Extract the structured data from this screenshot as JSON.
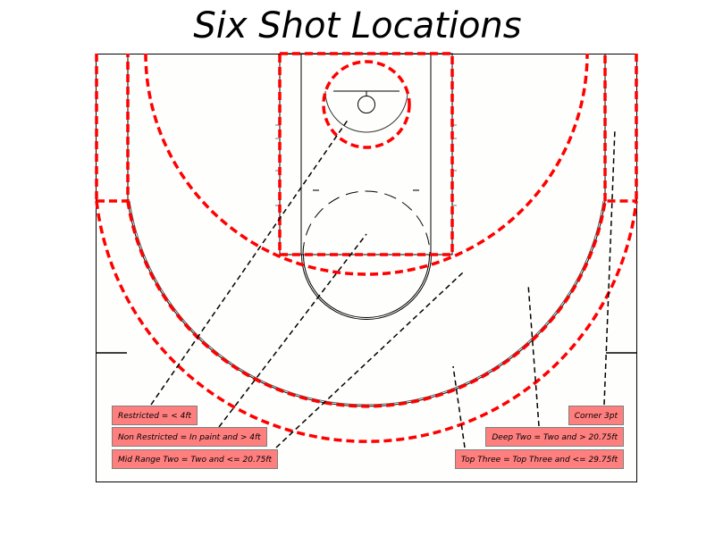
{
  "title": "Six Shot Locations",
  "colors": {
    "zone_outline": "#ff0000",
    "label_fill": "#ff7f7f",
    "court_lines": "#000000",
    "background": "#fefefc"
  },
  "labels": {
    "restricted": "Restricted = < 4ft",
    "non_restricted": "Non Restricted = In paint and > 4ft",
    "mid_range_two": "Mid Range Two = Two and <= 20.75ft",
    "corner_3pt": "Corner 3pt",
    "deep_two": "Deep Two = Two and > 20.75ft",
    "top_three": "Top Three = Top Three and <= 29.75ft"
  }
}
